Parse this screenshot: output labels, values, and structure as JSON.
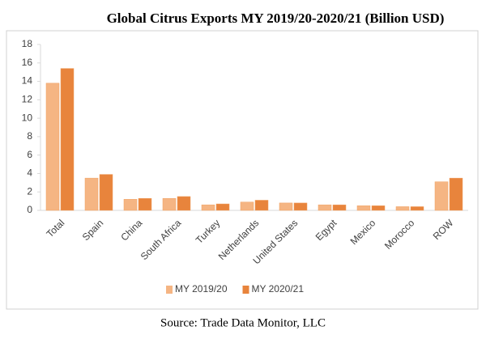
{
  "chart_data": {
    "type": "bar",
    "title": "Global Citrus Exports MY 2019/20-2020/21 (Billion USD)",
    "source": "Source: Trade Data Monitor, LLC",
    "categories": [
      "Total",
      "Spain",
      "China",
      "South Africa",
      "Turkey",
      "Netherlands",
      "United States",
      "Egypt",
      "Mexico",
      "Morocco",
      "ROW"
    ],
    "series": [
      {
        "name": "MY 2019/20",
        "color": "#f5b583",
        "values": [
          13.8,
          3.5,
          1.2,
          1.3,
          0.6,
          0.9,
          0.8,
          0.6,
          0.5,
          0.4,
          3.1
        ]
      },
      {
        "name": "MY 2020/21",
        "color": "#e8843c",
        "values": [
          15.4,
          3.9,
          1.3,
          1.5,
          0.7,
          1.1,
          0.8,
          0.6,
          0.5,
          0.4,
          3.5
        ]
      }
    ],
    "ylim": [
      0,
      18
    ],
    "yticks": [
      0,
      2,
      4,
      6,
      8,
      10,
      12,
      14,
      16,
      18
    ],
    "grid": false,
    "legend": "bottom"
  }
}
